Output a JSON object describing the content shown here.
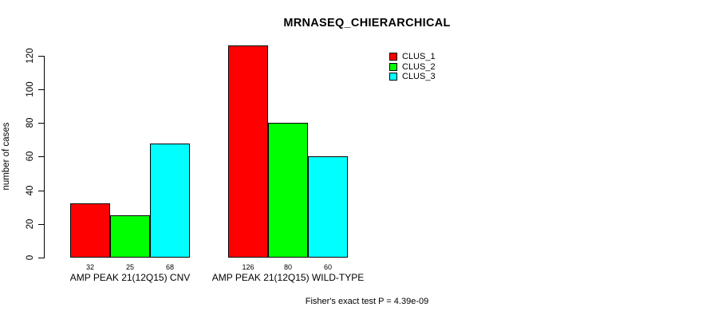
{
  "chart_data": {
    "type": "bar",
    "title": "MRNASEQ_CHIERARCHICAL",
    "ylabel": "number of cases",
    "xlabel": "",
    "annotation": "Fisher's exact test P = 4.39e-09",
    "categories": [
      "AMP PEAK 21(12Q15) CNV",
      "AMP PEAK 21(12Q15) WILD-TYPE"
    ],
    "series": [
      {
        "name": "CLUS_1",
        "color": "#ff0000",
        "values": [
          32,
          126
        ]
      },
      {
        "name": "CLUS_2",
        "color": "#00ff00",
        "values": [
          25,
          80
        ]
      },
      {
        "name": "CLUS_3",
        "color": "#00ffff",
        "values": [
          68,
          60
        ]
      }
    ],
    "yticks": [
      0,
      20,
      40,
      60,
      80,
      100,
      120
    ],
    "ylim": [
      0,
      130
    ],
    "bar_value_labels_shown": true,
    "grid": false,
    "legend_position": "top-right",
    "legend_entries": [
      "CLUS_1",
      "CLUS_2",
      "CLUS_3"
    ],
    "axis_color": "#000000",
    "text_color": "#000000",
    "background_color": "#ffffff"
  }
}
